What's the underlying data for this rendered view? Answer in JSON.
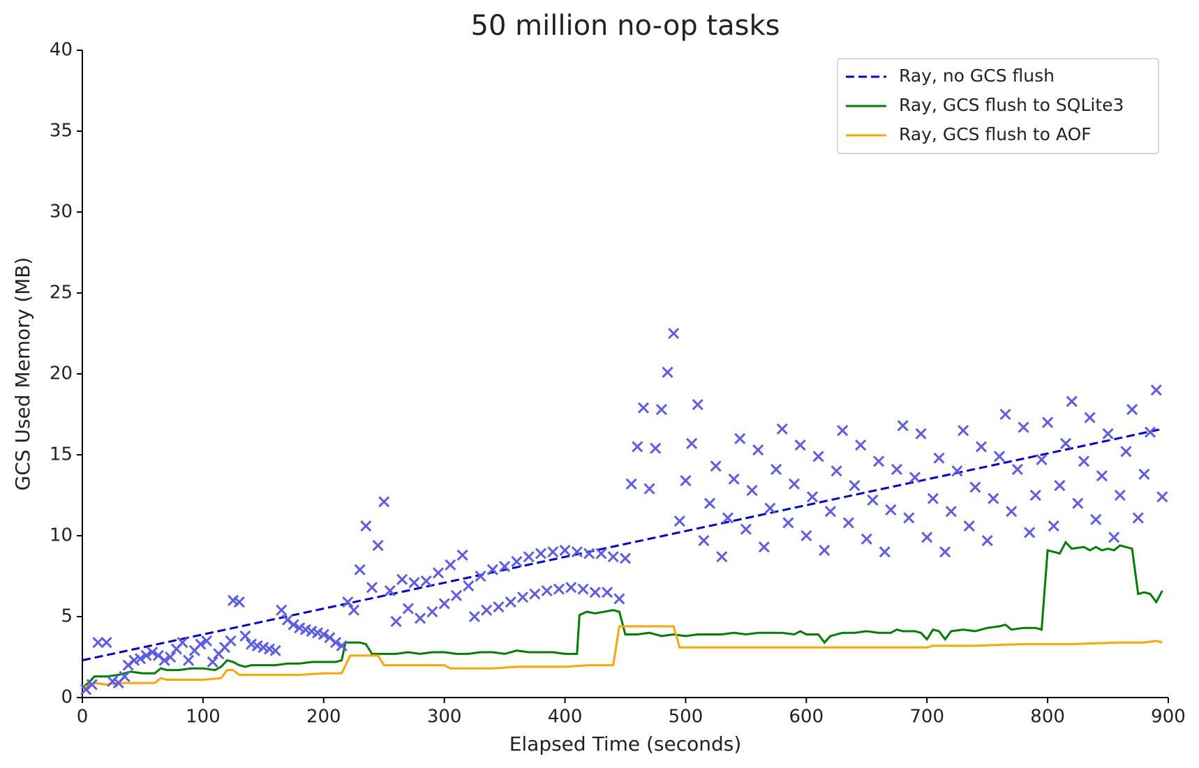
{
  "chart_data": {
    "type": "line",
    "title": "50 million no-op tasks",
    "xlabel": "Elapsed Time (seconds)",
    "ylabel": "GCS Used Memory (MB)",
    "xlim": [
      0,
      900
    ],
    "ylim": [
      0,
      40
    ],
    "xticks": [
      0,
      100,
      200,
      300,
      400,
      500,
      600,
      700,
      800,
      900
    ],
    "yticks": [
      0,
      5,
      10,
      15,
      20,
      25,
      30,
      35,
      40
    ],
    "grid": false,
    "legend": "upper right",
    "series": [
      {
        "name": "Ray, no GCS flush",
        "color": "#0000dd",
        "linestyle": "dashed",
        "x": [
          0,
          895
        ],
        "values": [
          2.3,
          16.6
        ]
      },
      {
        "name": "Ray, GCS flush to SQLite3",
        "color": "#008000",
        "linestyle": "solid",
        "x": [
          0,
          5,
          10,
          20,
          30,
          35,
          40,
          50,
          60,
          65,
          70,
          80,
          90,
          100,
          110,
          115,
          120,
          125,
          130,
          135,
          140,
          150,
          160,
          170,
          180,
          190,
          200,
          210,
          215,
          218,
          230,
          235,
          240,
          250,
          260,
          270,
          280,
          290,
          300,
          310,
          320,
          330,
          340,
          350,
          360,
          370,
          380,
          390,
          400,
          410,
          412,
          418,
          425,
          440,
          445,
          450,
          460,
          470,
          480,
          490,
          500,
          510,
          520,
          530,
          540,
          550,
          560,
          570,
          580,
          590,
          595,
          600,
          610,
          615,
          620,
          630,
          640,
          650,
          660,
          670,
          675,
          680,
          690,
          695,
          700,
          705,
          710,
          715,
          720,
          730,
          740,
          750,
          760,
          765,
          770,
          780,
          790,
          795,
          800,
          810,
          815,
          820,
          830,
          835,
          840,
          845,
          850,
          855,
          860,
          870,
          875,
          880,
          885,
          890,
          895
        ],
        "values": [
          0.6,
          0.9,
          1.3,
          1.3,
          1.4,
          1.5,
          1.6,
          1.5,
          1.5,
          1.8,
          1.7,
          1.7,
          1.8,
          1.8,
          1.7,
          1.9,
          2.3,
          2.2,
          2.0,
          1.9,
          2.0,
          2.0,
          2.0,
          2.1,
          2.1,
          2.2,
          2.2,
          2.2,
          2.3,
          3.4,
          3.4,
          3.3,
          2.7,
          2.7,
          2.7,
          2.8,
          2.7,
          2.8,
          2.8,
          2.7,
          2.7,
          2.8,
          2.8,
          2.7,
          2.9,
          2.8,
          2.8,
          2.8,
          2.7,
          2.7,
          5.1,
          5.3,
          5.2,
          5.4,
          5.3,
          3.9,
          3.9,
          4.0,
          3.8,
          3.9,
          3.8,
          3.9,
          3.9,
          3.9,
          4.0,
          3.9,
          4.0,
          4.0,
          4.0,
          3.9,
          4.1,
          3.9,
          3.9,
          3.4,
          3.8,
          4.0,
          4.0,
          4.1,
          4.0,
          4.0,
          4.2,
          4.1,
          4.1,
          4.0,
          3.6,
          4.2,
          4.1,
          3.6,
          4.1,
          4.2,
          4.1,
          4.3,
          4.4,
          4.5,
          4.2,
          4.3,
          4.3,
          4.2,
          9.1,
          8.9,
          9.6,
          9.2,
          9.3,
          9.1,
          9.3,
          9.1,
          9.2,
          9.1,
          9.4,
          9.2,
          6.4,
          6.5,
          6.4,
          5.9,
          6.6
        ]
      },
      {
        "name": "Ray, GCS flush to AOF",
        "color": "#ffa500",
        "linestyle": "solid",
        "x": [
          0,
          10,
          20,
          30,
          40,
          50,
          60,
          65,
          70,
          80,
          100,
          115,
          120,
          125,
          130,
          140,
          160,
          180,
          200,
          215,
          222,
          245,
          250,
          270,
          300,
          305,
          320,
          340,
          360,
          380,
          400,
          420,
          440,
          445,
          480,
          490,
          495,
          520,
          560,
          600,
          640,
          680,
          700,
          705,
          740,
          780,
          800,
          820,
          860,
          880,
          890,
          895
        ],
        "values": [
          0.6,
          0.9,
          0.8,
          0.9,
          0.9,
          0.9,
          0.9,
          1.2,
          1.1,
          1.1,
          1.1,
          1.2,
          1.7,
          1.7,
          1.4,
          1.4,
          1.4,
          1.4,
          1.5,
          1.5,
          2.6,
          2.6,
          2.0,
          2.0,
          2.0,
          1.8,
          1.8,
          1.8,
          1.9,
          1.9,
          1.9,
          2.0,
          2.0,
          4.4,
          4.4,
          4.4,
          3.1,
          3.1,
          3.1,
          3.1,
          3.1,
          3.1,
          3.1,
          3.2,
          3.2,
          3.3,
          3.3,
          3.3,
          3.4,
          3.4,
          3.5,
          3.4
        ]
      },
      {
        "type": "scatter",
        "marker": "x",
        "color": "#5c5cec",
        "x": [
          3,
          8,
          13,
          20,
          25,
          30,
          35,
          38,
          43,
          48,
          53,
          58,
          63,
          68,
          73,
          78,
          83,
          88,
          93,
          98,
          103,
          108,
          113,
          118,
          123,
          125,
          130,
          135,
          140,
          145,
          150,
          155,
          160,
          165,
          170,
          175,
          180,
          185,
          190,
          195,
          200,
          205,
          210,
          215,
          220,
          225,
          230,
          235,
          240,
          245,
          250,
          255,
          260,
          265,
          270,
          275,
          280,
          285,
          290,
          295,
          300,
          305,
          310,
          315,
          320,
          325,
          330,
          335,
          340,
          345,
          350,
          355,
          360,
          365,
          370,
          375,
          380,
          385,
          390,
          395,
          400,
          405,
          410,
          415,
          420,
          425,
          430,
          435,
          440,
          445,
          450,
          455,
          460,
          465,
          470,
          475,
          480,
          485,
          490,
          495,
          500,
          505,
          510,
          515,
          520,
          525,
          530,
          535,
          540,
          545,
          550,
          555,
          560,
          565,
          570,
          575,
          580,
          585,
          590,
          595,
          600,
          605,
          610,
          615,
          620,
          625,
          630,
          635,
          640,
          645,
          650,
          655,
          660,
          665,
          670,
          675,
          680,
          685,
          690,
          695,
          700,
          705,
          710,
          715,
          720,
          725,
          730,
          735,
          740,
          745,
          750,
          755,
          760,
          765,
          770,
          775,
          780,
          785,
          790,
          795,
          800,
          805,
          810,
          815,
          820,
          825,
          830,
          835,
          840,
          845,
          850,
          855,
          860,
          865,
          870,
          875,
          880,
          885,
          890,
          895
        ],
        "values": [
          0.5,
          0.8,
          3.4,
          3.4,
          1.0,
          0.9,
          1.3,
          2.0,
          2.3,
          2.4,
          2.6,
          2.8,
          2.6,
          2.3,
          2.5,
          3.0,
          3.4,
          2.3,
          2.9,
          3.3,
          3.5,
          2.2,
          2.7,
          3.1,
          3.5,
          6.0,
          5.9,
          3.8,
          3.3,
          3.2,
          3.1,
          3.0,
          2.9,
          5.4,
          4.8,
          4.5,
          4.3,
          4.2,
          4.1,
          4.0,
          3.9,
          3.7,
          3.4,
          3.2,
          5.9,
          5.4,
          7.9,
          10.6,
          6.8,
          9.4,
          12.1,
          6.6,
          4.7,
          7.3,
          5.5,
          7.1,
          4.9,
          7.2,
          5.3,
          7.7,
          5.8,
          8.2,
          6.3,
          8.8,
          6.9,
          5.0,
          7.5,
          5.4,
          7.9,
          5.6,
          8.1,
          5.9,
          8.4,
          6.2,
          8.7,
          6.4,
          8.9,
          6.6,
          9.0,
          6.7,
          9.1,
          6.8,
          9.0,
          6.7,
          8.9,
          6.5,
          8.9,
          6.5,
          8.7,
          6.1,
          8.6,
          13.2,
          15.5,
          17.9,
          12.9,
          15.4,
          17.8,
          20.1,
          22.5,
          10.9,
          13.4,
          15.7,
          18.1,
          9.7,
          12.0,
          14.3,
          8.7,
          11.1,
          13.5,
          16.0,
          10.4,
          12.8,
          15.3,
          9.3,
          11.7,
          14.1,
          16.6,
          10.8,
          13.2,
          15.6,
          10.0,
          12.4,
          14.9,
          9.1,
          11.5,
          14.0,
          16.5,
          10.8,
          13.1,
          15.6,
          9.8,
          12.2,
          14.6,
          9.0,
          11.6,
          14.1,
          16.8,
          11.1,
          13.6,
          16.3,
          9.9,
          12.3,
          14.8,
          9.0,
          11.5,
          14.0,
          16.5,
          10.6,
          13.0,
          15.5,
          9.7,
          12.3,
          14.9,
          17.5,
          11.5,
          14.1,
          16.7,
          10.2,
          12.5,
          14.7,
          17.0,
          10.6,
          13.1,
          15.7,
          18.3,
          12.0,
          14.6,
          17.3,
          11.0,
          13.7,
          16.3,
          9.9,
          12.5,
          15.2,
          17.8,
          11.1,
          13.8,
          16.4,
          19.0,
          12.4
        ]
      }
    ]
  }
}
